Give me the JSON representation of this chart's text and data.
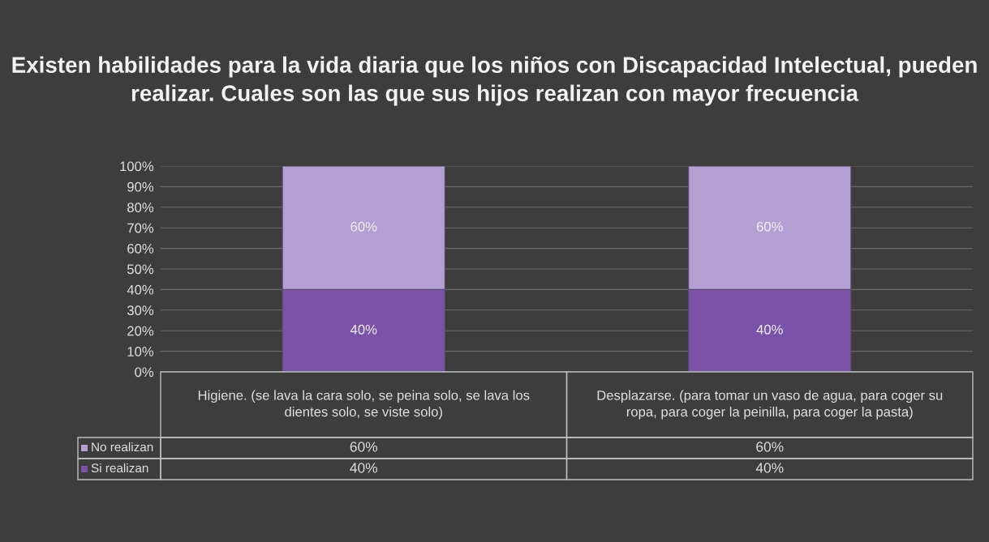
{
  "chart_data": {
    "type": "bar",
    "stacked": true,
    "title": "Existen habilidades para la vida diaria que los niños con Discapacidad Intelectual, pueden realizar. Cuales son las que sus hijos realizan con mayor frecuencia",
    "categories": [
      "Higiene. (se lava la cara solo, se peina solo, se lava los dientes solo, se viste solo)",
      "Desplazarse. (para tomar un vaso de agua, para coger su ropa, para coger la peinilla, para coger la pasta)"
    ],
    "series": [
      {
        "name": "Si realizan",
        "color": "#7a52a8",
        "values": [
          40,
          40
        ],
        "value_labels": [
          "40%",
          "40%"
        ]
      },
      {
        "name": "No realizan",
        "color": "#b3a0d2",
        "values": [
          60,
          60
        ],
        "value_labels": [
          "60%",
          "60%"
        ]
      }
    ],
    "ylim": [
      0,
      100
    ],
    "yticks": [
      {
        "value": 0,
        "label": "0%"
      },
      {
        "value": 10,
        "label": "10%"
      },
      {
        "value": 20,
        "label": "20%"
      },
      {
        "value": 30,
        "label": "30%"
      },
      {
        "value": 40,
        "label": "40%"
      },
      {
        "value": 50,
        "label": "50%"
      },
      {
        "value": 60,
        "label": "60%"
      },
      {
        "value": 70,
        "label": "70%"
      },
      {
        "value": 80,
        "label": "80%"
      },
      {
        "value": 90,
        "label": "90%"
      },
      {
        "value": 100,
        "label": "100%"
      }
    ],
    "grid": "y",
    "legend": "bottom"
  }
}
